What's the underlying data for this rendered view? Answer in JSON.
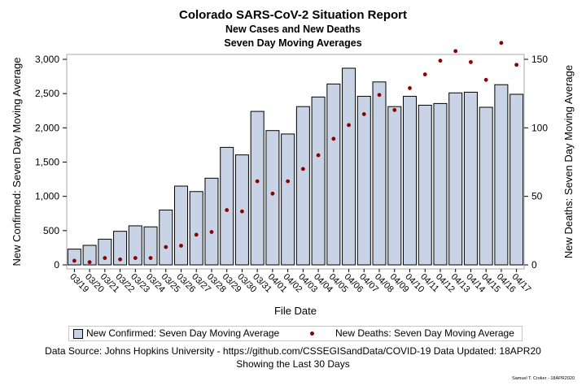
{
  "header": {
    "title": "Colorado SARS-CoV-2 Situation Report",
    "subtitle1": "New Cases and New Deaths",
    "subtitle2": "Seven Day Moving Averages"
  },
  "legend": {
    "bar_label": "New Confirmed: Seven Day Moving Average",
    "dot_label": "New Deaths: Seven Day Moving Average"
  },
  "footer": {
    "source": "Data Source: Johns Hopkins University - https://github.com/CSSEGISandData/COVID-19 Data Updated: 18APR20",
    "note": "Showing the Last 30 Days",
    "signature": "Samuel T. Croker - 18APR2020"
  },
  "colors": {
    "bar_fill": "#c8d3e6",
    "bar_stroke": "#000000",
    "dot": "#8b0000"
  },
  "chart_data": {
    "type": "bar",
    "title": "Colorado SARS-CoV-2 Situation Report",
    "xlabel": "File Date",
    "ylabel": "New Confirmed: Seven Day Moving Average",
    "y2label": "New Deaths: Seven Day Moving Average",
    "categories": [
      "03/19",
      "03/20",
      "03/21",
      "03/22",
      "03/23",
      "03/24",
      "03/25",
      "03/26",
      "03/27",
      "03/28",
      "03/29",
      "03/30",
      "03/31",
      "04/01",
      "04/02",
      "04/03",
      "04/04",
      "04/05",
      "04/06",
      "04/07",
      "04/08",
      "04/09",
      "04/10",
      "04/11",
      "04/12",
      "04/13",
      "04/14",
      "04/15",
      "04/16",
      "04/17"
    ],
    "ylim": [
      0,
      3000
    ],
    "y2lim": [
      0,
      150
    ],
    "yticks": [
      "0",
      "500",
      "1,000",
      "1,500",
      "2,000",
      "2,500",
      "3,000"
    ],
    "y2ticks": [
      "0",
      "50",
      "100",
      "150"
    ],
    "series": [
      {
        "name": "New Confirmed: Seven Day Moving Average",
        "type": "bar",
        "axis": "left",
        "values": [
          230,
          285,
          375,
          490,
          570,
          555,
          800,
          1150,
          1070,
          1265,
          1715,
          1605,
          2240,
          1960,
          1910,
          2310,
          2450,
          2640,
          2870,
          2460,
          2670,
          2310,
          2460,
          2330,
          2355,
          2510,
          2520,
          2300,
          2630,
          2490
        ]
      },
      {
        "name": "New Deaths: Seven Day Moving Average",
        "type": "scatter",
        "axis": "right",
        "values": [
          3,
          2,
          5,
          4,
          5,
          5,
          13,
          14,
          22,
          24,
          40,
          39,
          61,
          52,
          61,
          70,
          80,
          92,
          102,
          110,
          124,
          113,
          129,
          139,
          149,
          156,
          148,
          135,
          162,
          146
        ]
      }
    ]
  }
}
